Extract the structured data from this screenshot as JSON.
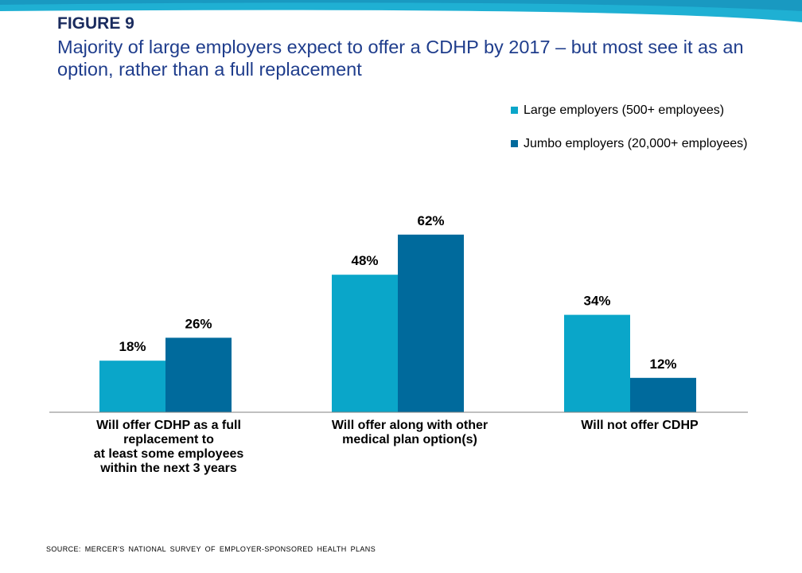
{
  "figure_label": "FIGURE 9",
  "title": "Majority of large employers expect to offer a CDHP by 2017 – but most see it as an option, rather than a full replacement",
  "source": "SOURCE: MERCER'S NATIONAL SURVEY OF EMPLOYER-SPONSORED HEALTH PLANS",
  "colors": {
    "band_light": "#1fb0d3",
    "band_dark": "#0d6fa0"
  },
  "chart_data": {
    "type": "bar",
    "categories": [
      "Will offer CDHP as a full\nreplacement to\nat least some employees\nwithin the next 3 years",
      "Will offer along with other\nmedical plan option(s)",
      "Will not offer CDHP"
    ],
    "series": [
      {
        "name": "Large employers (500+ employees)",
        "color": "#0aa6c9",
        "values": [
          18,
          48,
          34
        ],
        "labels": [
          "18%",
          "48%",
          "34%"
        ]
      },
      {
        "name": "Jumbo employers (20,000+ employees)",
        "color": "#006a9c",
        "values": [
          26,
          62,
          12
        ],
        "labels": [
          "26%",
          "62%",
          "12%"
        ]
      }
    ],
    "ylim": [
      0,
      70
    ],
    "grid": false,
    "legend_position": "top-right"
  }
}
